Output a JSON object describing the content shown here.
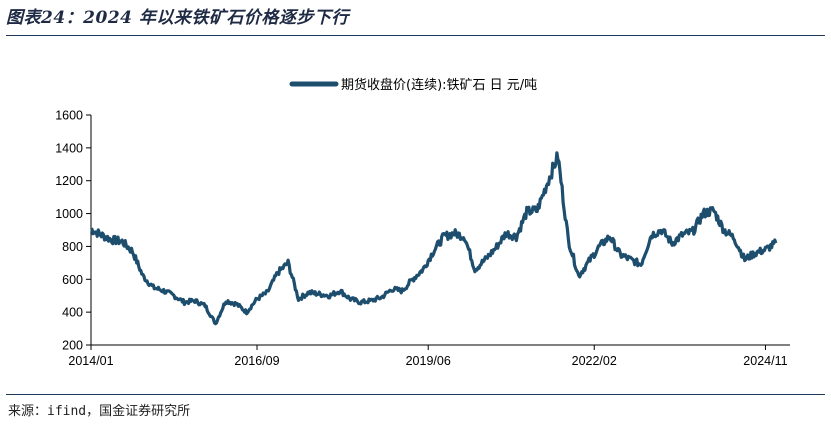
{
  "figure_title": "图表24：2024 年以来铁矿石价格逐步下行",
  "source_text": "来源：ifind，国金证券研究所",
  "colors": {
    "series": "#1d4e6e",
    "rule": "#1f3a5a"
  },
  "chart_data": {
    "type": "line",
    "title": "",
    "xlabel": "",
    "ylabel": "",
    "ylim": [
      200,
      1600
    ],
    "yticks": [
      "1600",
      "1400",
      "1200",
      "1000",
      "800",
      "600",
      "400",
      "200"
    ],
    "xticks": [
      "2014/01",
      "2016/09",
      "2019/06",
      "2022/02",
      "2024/11"
    ],
    "xlim": [
      "2014/01",
      "2025/02"
    ],
    "grid": false,
    "legend_position": "top-center",
    "series": [
      {
        "name": "期货收盘价(连续):铁矿石 日 元/吨",
        "x": [
          "2014/01",
          "2014/03",
          "2014/05",
          "2014/07",
          "2014/09",
          "2014/11",
          "2015/01",
          "2015/03",
          "2015/05",
          "2015/07",
          "2015/09",
          "2015/11",
          "2016/01",
          "2016/03",
          "2016/05",
          "2016/07",
          "2016/09",
          "2016/11",
          "2017/01",
          "2017/03",
          "2017/05",
          "2017/07",
          "2017/09",
          "2017/11",
          "2018/01",
          "2018/03",
          "2018/05",
          "2018/07",
          "2018/09",
          "2018/11",
          "2019/01",
          "2019/03",
          "2019/05",
          "2019/07",
          "2019/09",
          "2019/11",
          "2020/01",
          "2020/03",
          "2020/05",
          "2020/07",
          "2020/09",
          "2020/11",
          "2021/01",
          "2021/03",
          "2021/05",
          "2021/07",
          "2021/09",
          "2021/11",
          "2022/01",
          "2022/03",
          "2022/05",
          "2022/07",
          "2022/09",
          "2022/11",
          "2023/01",
          "2023/03",
          "2023/05",
          "2023/07",
          "2023/09",
          "2023/11",
          "2024/01",
          "2024/03",
          "2024/05",
          "2024/07",
          "2024/09",
          "2024/11",
          "2025/01"
        ],
        "values": [
          905,
          870,
          840,
          830,
          770,
          620,
          550,
          530,
          500,
          460,
          470,
          440,
          330,
          470,
          450,
          400,
          480,
          520,
          640,
          700,
          480,
          520,
          510,
          500,
          530,
          480,
          460,
          470,
          490,
          540,
          530,
          600,
          660,
          770,
          860,
          880,
          860,
          660,
          720,
          790,
          880,
          860,
          1010,
          1020,
          1190,
          1350,
          840,
          620,
          710,
          800,
          860,
          750,
          720,
          690,
          870,
          900,
          820,
          870,
          890,
          1000,
          1020,
          900,
          850,
          720,
          760,
          780,
          820
        ]
      }
    ]
  }
}
